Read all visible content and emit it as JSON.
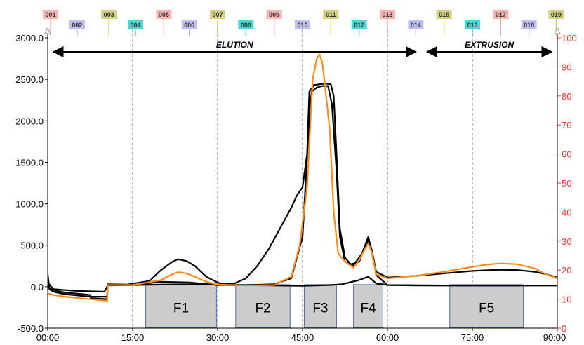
{
  "chart_data": {
    "type": "line",
    "x_tick_labels": [
      "00:00",
      "15:00",
      "30:00",
      "45:00",
      "60:00",
      "75:00",
      "90:00"
    ],
    "y_left_tick_labels": [
      "-500.0",
      "0.0",
      "500.0",
      "1000.0",
      "1500.0",
      "2000.0",
      "2500.0",
      "3000.0"
    ],
    "y_right_tick_labels": [
      "0",
      "10",
      "20",
      "30",
      "40",
      "50",
      "60",
      "70",
      "80",
      "90",
      "100"
    ],
    "xlim_minutes": [
      0,
      90
    ],
    "ylim_left": [
      -500,
      3000
    ],
    "ylim_right": [
      0,
      100
    ],
    "grid": "vertical dashed lines every 15 minutes",
    "sections": [
      {
        "label": "ELUTION",
        "start_min": 1,
        "end_min": 65
      },
      {
        "label": "EXTRUSION",
        "start_min": 67,
        "end_min": 89
      }
    ],
    "markers": [
      {
        "label": "001",
        "time_min": 0.5,
        "color": "#f5a3a3",
        "row": "top"
      },
      {
        "label": "002",
        "time_min": 5.2,
        "color": "#b3b3ee",
        "row": "bottom"
      },
      {
        "label": "003",
        "time_min": 10.8,
        "color": "#c9c96b",
        "row": "top"
      },
      {
        "label": "004",
        "time_min": 15.5,
        "color": "#33cccc",
        "row": "bottom"
      },
      {
        "label": "005",
        "time_min": 20.5,
        "color": "#f5a3a3",
        "row": "top"
      },
      {
        "label": "006",
        "time_min": 25.0,
        "color": "#b3b3ee",
        "row": "bottom"
      },
      {
        "label": "007",
        "time_min": 30.0,
        "color": "#c9c96b",
        "row": "top"
      },
      {
        "label": "008",
        "time_min": 35.0,
        "color": "#33cccc",
        "row": "bottom"
      },
      {
        "label": "009",
        "time_min": 40.0,
        "color": "#f5a3a3",
        "row": "top"
      },
      {
        "label": "010",
        "time_min": 45.0,
        "color": "#b3b3ee",
        "row": "bottom"
      },
      {
        "label": "011",
        "time_min": 50.0,
        "color": "#c9c96b",
        "row": "top"
      },
      {
        "label": "012",
        "time_min": 55.0,
        "color": "#33cccc",
        "row": "bottom"
      },
      {
        "label": "013",
        "time_min": 60.0,
        "color": "#f5a3a3",
        "row": "top"
      },
      {
        "label": "014",
        "time_min": 65.0,
        "color": "#b3b3ee",
        "row": "bottom"
      },
      {
        "label": "015",
        "time_min": 70.0,
        "color": "#c9c96b",
        "row": "top"
      },
      {
        "label": "016",
        "time_min": 75.0,
        "color": "#33cccc",
        "row": "bottom"
      },
      {
        "label": "017",
        "time_min": 80.0,
        "color": "#f5a3a3",
        "row": "top"
      },
      {
        "label": "018",
        "time_min": 85.0,
        "color": "#b3b3ee",
        "row": "bottom"
      },
      {
        "label": "019",
        "time_min": 89.8,
        "color": "#c9c96b",
        "row": "top"
      }
    ],
    "fractions": [
      {
        "label": "F1",
        "start_min": 17.3,
        "end_min": 29.8
      },
      {
        "label": "F2",
        "start_min": 33.2,
        "end_min": 42.8
      },
      {
        "label": "F3",
        "start_min": 45.3,
        "end_min": 51.0
      },
      {
        "label": "F4",
        "start_min": 54.0,
        "end_min": 59.2
      },
      {
        "label": "F5",
        "start_min": 71.0,
        "end_min": 84.0
      }
    ],
    "series": [
      {
        "color": "#000000",
        "points": [
          [
            0,
            150
          ],
          [
            0.3,
            -30
          ],
          [
            1,
            -60
          ],
          [
            3,
            -90
          ],
          [
            7.5,
            -120
          ],
          [
            7.6,
            -140
          ],
          [
            10.5,
            -150
          ],
          [
            10.6,
            30
          ],
          [
            14,
            25
          ],
          [
            18,
            70
          ],
          [
            20,
            200
          ],
          [
            22,
            300
          ],
          [
            23,
            330
          ],
          [
            24.5,
            310
          ],
          [
            26,
            250
          ],
          [
            28,
            120
          ],
          [
            30,
            50
          ],
          [
            31,
            30
          ],
          [
            33,
            40
          ],
          [
            35,
            100
          ],
          [
            37,
            250
          ],
          [
            39,
            450
          ],
          [
            41,
            700
          ],
          [
            43,
            950
          ],
          [
            44,
            1100
          ],
          [
            45,
            1200
          ],
          [
            45.8,
            1600
          ],
          [
            46.2,
            2350
          ],
          [
            47,
            2430
          ],
          [
            48,
            2440
          ],
          [
            49,
            2450
          ],
          [
            50,
            2440
          ],
          [
            50.5,
            2300
          ],
          [
            51,
            1600
          ],
          [
            51.6,
            700
          ],
          [
            52.5,
            350
          ],
          [
            53.5,
            270
          ],
          [
            55,
            300
          ],
          [
            56,
            480
          ],
          [
            56.6,
            560
          ],
          [
            57.2,
            450
          ],
          [
            58,
            180
          ],
          [
            60,
            110
          ],
          [
            65,
            130
          ],
          [
            70,
            160
          ],
          [
            75,
            190
          ],
          [
            80,
            205
          ],
          [
            83,
            200
          ],
          [
            86,
            180
          ],
          [
            88,
            150
          ],
          [
            90,
            110
          ]
        ]
      },
      {
        "color": "#000000",
        "points": [
          [
            0,
            100
          ],
          [
            0.3,
            -20
          ],
          [
            1,
            -40
          ],
          [
            3,
            -70
          ],
          [
            7.5,
            -100
          ],
          [
            7.6,
            -120
          ],
          [
            10.5,
            -120
          ],
          [
            10.6,
            20
          ],
          [
            15,
            20
          ],
          [
            20,
            25
          ],
          [
            25,
            30
          ],
          [
            30,
            25
          ],
          [
            35,
            20
          ],
          [
            40,
            30
          ],
          [
            43,
            100
          ],
          [
            45,
            600
          ],
          [
            46,
            1800
          ],
          [
            46.6,
            2350
          ],
          [
            47.5,
            2400
          ],
          [
            48.5,
            2420
          ],
          [
            49.5,
            2420
          ],
          [
            50.2,
            2200
          ],
          [
            51,
            1400
          ],
          [
            51.6,
            600
          ],
          [
            52.5,
            300
          ],
          [
            54,
            260
          ],
          [
            55.5,
            400
          ],
          [
            56.6,
            600
          ],
          [
            57.3,
            420
          ],
          [
            58,
            140
          ],
          [
            60,
            20
          ],
          [
            65,
            15
          ],
          [
            70,
            15
          ],
          [
            80,
            15
          ],
          [
            90,
            15
          ]
        ]
      },
      {
        "color": "#000000",
        "points": [
          [
            0,
            50
          ],
          [
            1,
            -30
          ],
          [
            5,
            -50
          ],
          [
            10,
            -60
          ],
          [
            10.6,
            15
          ],
          [
            15,
            20
          ],
          [
            20,
            60
          ],
          [
            25,
            50
          ],
          [
            30,
            20
          ],
          [
            40,
            15
          ],
          [
            45,
            10
          ],
          [
            50,
            20
          ],
          [
            52,
            30
          ],
          [
            55,
            80
          ],
          [
            56.6,
            120
          ],
          [
            58,
            40
          ],
          [
            60,
            20
          ],
          [
            70,
            15
          ],
          [
            80,
            15
          ],
          [
            90,
            15
          ]
        ]
      },
      {
        "color": "#ff8c1a",
        "points": [
          [
            0,
            -80
          ],
          [
            1,
            -100
          ],
          [
            3,
            -120
          ],
          [
            7.5,
            -150
          ],
          [
            10.5,
            -170
          ],
          [
            10.6,
            20
          ],
          [
            15,
            20
          ],
          [
            20,
            80
          ],
          [
            22,
            150
          ],
          [
            23,
            175
          ],
          [
            24.5,
            160
          ],
          [
            26,
            120
          ],
          [
            28,
            60
          ],
          [
            30,
            25
          ],
          [
            35,
            15
          ],
          [
            40,
            20
          ],
          [
            43,
            120
          ],
          [
            44.5,
            500
          ],
          [
            45.8,
            1200
          ],
          [
            46.4,
            2000
          ],
          [
            46.8,
            2500
          ],
          [
            47.5,
            2750
          ],
          [
            48,
            2800
          ],
          [
            48.5,
            2700
          ],
          [
            49,
            2400
          ],
          [
            49.8,
            1900
          ],
          [
            50.5,
            900
          ],
          [
            51.3,
            400
          ],
          [
            52.5,
            300
          ],
          [
            54,
            230
          ],
          [
            55,
            320
          ],
          [
            56,
            450
          ],
          [
            56.6,
            520
          ],
          [
            57.2,
            420
          ],
          [
            58,
            150
          ],
          [
            60,
            100
          ],
          [
            65,
            130
          ],
          [
            70,
            180
          ],
          [
            75,
            240
          ],
          [
            78,
            270
          ],
          [
            80,
            280
          ],
          [
            83,
            270
          ],
          [
            86,
            220
          ],
          [
            88,
            150
          ],
          [
            90,
            100
          ]
        ]
      }
    ]
  }
}
